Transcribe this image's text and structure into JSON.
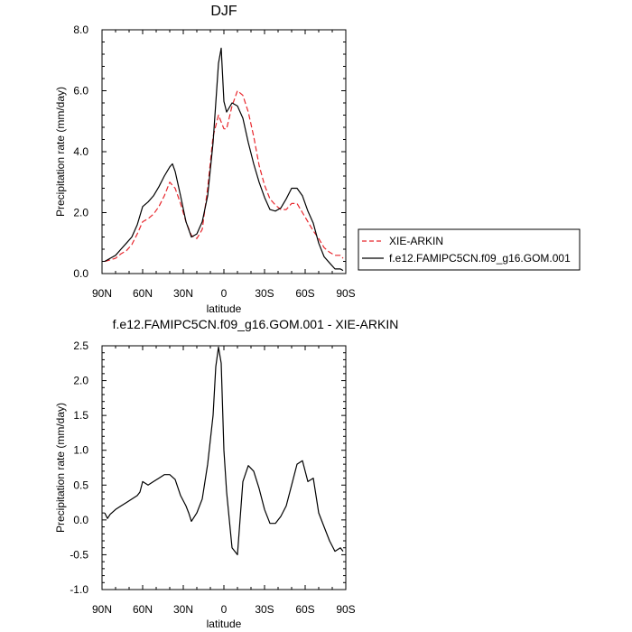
{
  "chart_data": [
    {
      "type": "line",
      "title": "DJF",
      "xlabel": "latitude",
      "ylabel": "Precipitation rate (mm/day)",
      "xlim": [
        90,
        -90
      ],
      "ylim": [
        0,
        8
      ],
      "xticks": [
        90,
        60,
        30,
        0,
        -30,
        -60,
        -90
      ],
      "xtick_labels": [
        "90N",
        "60N",
        "30N",
        "0",
        "30S",
        "60S",
        "90S"
      ],
      "yticks": [
        0,
        2,
        4,
        6,
        8
      ],
      "ytick_labels": [
        "0.0",
        "2.0",
        "4.0",
        "6.0",
        "8.0"
      ],
      "grid": false,
      "legend": "outside-right",
      "series": [
        {
          "name": "XIE-ARKIN",
          "color": "#e8262c",
          "dash": "dashed",
          "x": [
            88,
            84,
            80,
            76,
            72,
            68,
            64,
            60,
            56,
            52,
            48,
            44,
            40,
            36,
            32,
            28,
            24,
            20,
            16,
            12,
            8,
            4,
            0,
            -2,
            -6,
            -10,
            -14,
            -18,
            -22,
            -26,
            -30,
            -34,
            -38,
            -42,
            -46,
            -50,
            -54,
            -58,
            -62,
            -66,
            -70,
            -74,
            -78,
            -82,
            -86,
            -88
          ],
          "y": [
            0.4,
            0.45,
            0.5,
            0.65,
            0.75,
            0.95,
            1.3,
            1.7,
            1.8,
            1.95,
            2.2,
            2.55,
            3.0,
            2.8,
            2.3,
            1.7,
            1.25,
            1.15,
            1.45,
            2.8,
            4.5,
            5.2,
            4.75,
            4.75,
            5.5,
            6.0,
            5.85,
            5.3,
            4.5,
            3.55,
            2.9,
            2.45,
            2.25,
            2.1,
            2.1,
            2.3,
            2.3,
            2.0,
            1.7,
            1.4,
            1.15,
            0.85,
            0.7,
            0.6,
            0.6,
            0.5
          ]
        },
        {
          "name": "f.e12.FAMIPC5CN.f09_g16.GOM.001",
          "color": "#000000",
          "dash": "solid",
          "x": [
            88,
            84,
            80,
            76,
            72,
            68,
            64,
            60,
            56,
            52,
            48,
            44,
            40,
            38,
            36,
            32,
            28,
            24,
            20,
            16,
            12,
            8,
            4,
            2,
            0,
            -2,
            -6,
            -10,
            -14,
            -18,
            -22,
            -26,
            -30,
            -34,
            -38,
            -42,
            -46,
            -50,
            -54,
            -58,
            -62,
            -66,
            -70,
            -74,
            -78,
            -82,
            -86,
            -88
          ],
          "y": [
            0.4,
            0.5,
            0.6,
            0.8,
            1.0,
            1.2,
            1.6,
            2.2,
            2.35,
            2.55,
            2.85,
            3.2,
            3.5,
            3.6,
            3.35,
            2.55,
            1.7,
            1.2,
            1.3,
            1.7,
            2.55,
            4.3,
            6.9,
            7.4,
            5.65,
            5.3,
            5.6,
            5.5,
            5.1,
            4.3,
            3.6,
            3.0,
            2.5,
            2.1,
            2.05,
            2.15,
            2.45,
            2.8,
            2.8,
            2.55,
            2.05,
            1.65,
            1.0,
            0.55,
            0.35,
            0.15,
            0.15,
            0.1
          ]
        }
      ]
    },
    {
      "type": "line",
      "title": "f.e12.FAMIPC5CN.f09_g16.GOM.001 - XIE-ARKIN",
      "xlabel": "latitude",
      "ylabel": "Precipitation rate (mm/day)",
      "xlim": [
        90,
        -90
      ],
      "ylim": [
        -1,
        2.5
      ],
      "xticks": [
        90,
        60,
        30,
        0,
        -30,
        -60,
        -90
      ],
      "xtick_labels": [
        "90N",
        "60N",
        "30N",
        "0",
        "30S",
        "60S",
        "90S"
      ],
      "yticks": [
        -1,
        -0.5,
        0,
        0.5,
        1,
        1.5,
        2,
        2.5
      ],
      "ytick_labels": [
        "-1.0",
        "-0.5",
        "0.0",
        "0.5",
        "1.0",
        "1.5",
        "2.0",
        "2.5"
      ],
      "grid": false,
      "series": [
        {
          "color": "#000000",
          "dash": "solid",
          "x": [
            88,
            86,
            84,
            80,
            76,
            72,
            68,
            64,
            62,
            60,
            56,
            52,
            48,
            44,
            40,
            36,
            32,
            28,
            26,
            24,
            20,
            16,
            12,
            8,
            6,
            4,
            2,
            0,
            -2,
            -6,
            -10,
            -14,
            -18,
            -22,
            -26,
            -30,
            -34,
            -38,
            -42,
            -46,
            -50,
            -54,
            -58,
            -62,
            -66,
            -70,
            -74,
            -78,
            -82,
            -86,
            -88
          ],
          "y": [
            0.1,
            0.02,
            0.08,
            0.15,
            0.2,
            0.25,
            0.3,
            0.35,
            0.4,
            0.55,
            0.5,
            0.55,
            0.6,
            0.65,
            0.65,
            0.58,
            0.35,
            0.2,
            0.1,
            -0.02,
            0.1,
            0.3,
            0.8,
            1.5,
            2.2,
            2.48,
            2.25,
            1.0,
            0.4,
            -0.4,
            -0.5,
            0.55,
            0.78,
            0.7,
            0.45,
            0.15,
            -0.05,
            -0.05,
            0.05,
            0.2,
            0.5,
            0.8,
            0.85,
            0.55,
            0.6,
            0.1,
            -0.1,
            -0.3,
            -0.45,
            -0.4,
            -0.45
          ]
        }
      ]
    }
  ]
}
